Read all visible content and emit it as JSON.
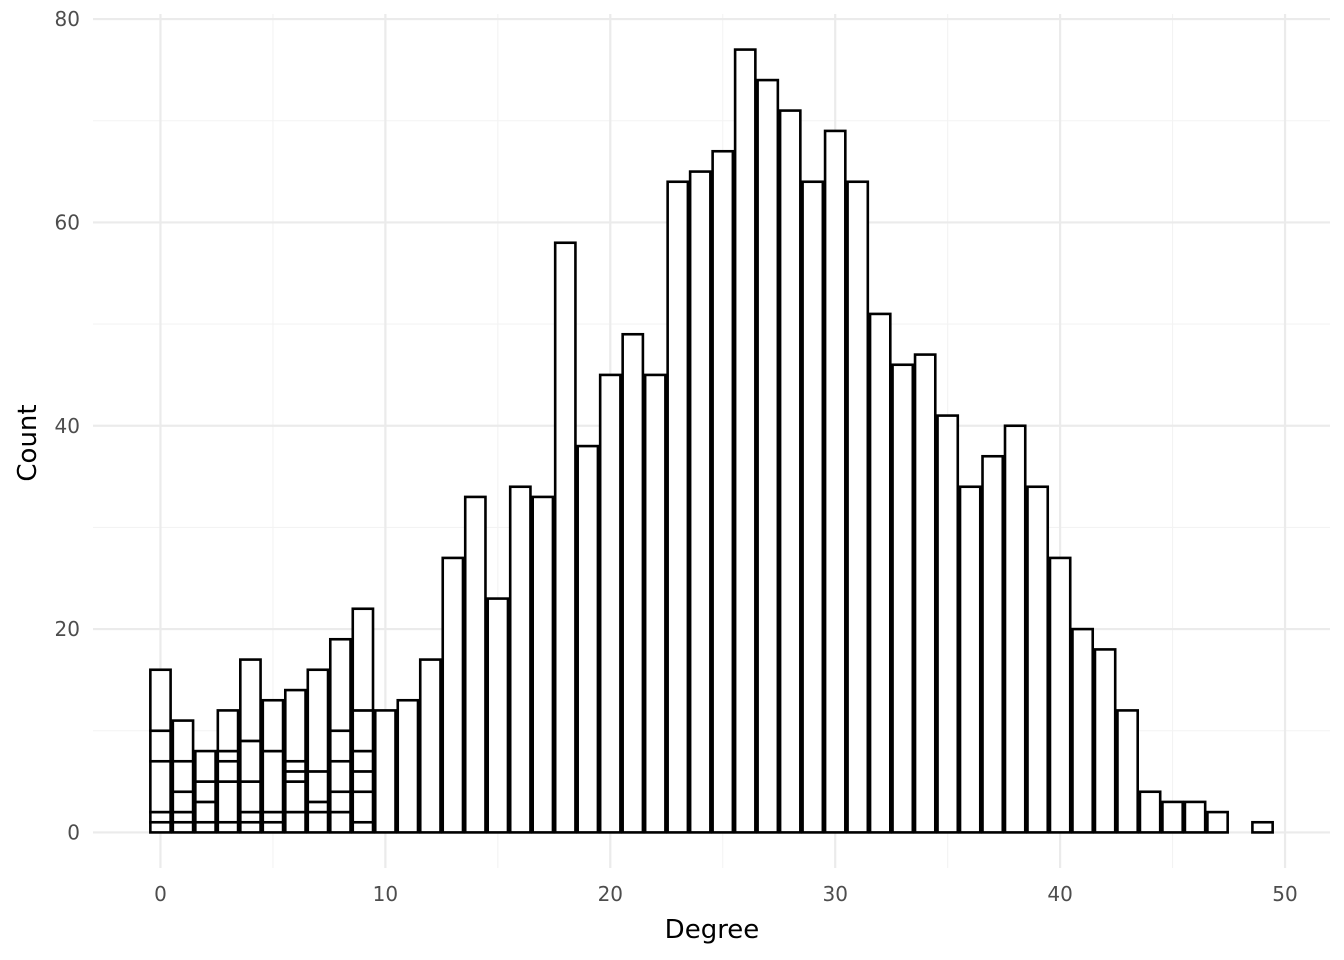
{
  "chart_data": {
    "type": "bar",
    "title": "",
    "xlabel": "Degree",
    "ylabel": "Count",
    "xlim": [
      -3,
      52
    ],
    "ylim": [
      -3.5,
      80.5
    ],
    "x_ticks": [
      0,
      10,
      20,
      30,
      40,
      50
    ],
    "y_ticks": [
      0,
      20,
      40,
      60,
      80
    ],
    "x_tick_labels": [
      "0",
      "10",
      "20",
      "30",
      "40",
      "50"
    ],
    "y_tick_labels": [
      "0",
      "20",
      "40",
      "60",
      "80"
    ],
    "grid": true,
    "bin_width": 1,
    "stacked": true,
    "bars": [
      {
        "x": 0,
        "values": [
          1,
          1,
          5,
          3,
          6
        ]
      },
      {
        "x": 1,
        "values": [
          1,
          1,
          2,
          3,
          4
        ]
      },
      {
        "x": 2,
        "values": [
          1,
          2,
          2,
          3
        ]
      },
      {
        "x": 3,
        "values": [
          1,
          4,
          2,
          1,
          4
        ]
      },
      {
        "x": 4,
        "values": [
          1,
          1,
          3,
          4,
          8
        ]
      },
      {
        "x": 5,
        "values": [
          1,
          1,
          6,
          5
        ]
      },
      {
        "x": 6,
        "values": [
          2,
          3,
          1,
          1,
          7
        ]
      },
      {
        "x": 7,
        "values": [
          2,
          1,
          3,
          10
        ]
      },
      {
        "x": 8,
        "values": [
          2,
          2,
          3,
          3,
          9
        ]
      },
      {
        "x": 9,
        "values": [
          1,
          3,
          2,
          2,
          4,
          10
        ]
      },
      {
        "x": 10,
        "values": [
          12
        ]
      },
      {
        "x": 11,
        "values": [
          13
        ]
      },
      {
        "x": 12,
        "values": [
          17
        ]
      },
      {
        "x": 13,
        "values": [
          27
        ]
      },
      {
        "x": 14,
        "values": [
          33
        ]
      },
      {
        "x": 15,
        "values": [
          23
        ]
      },
      {
        "x": 16,
        "values": [
          34
        ]
      },
      {
        "x": 17,
        "values": [
          33
        ]
      },
      {
        "x": 18,
        "values": [
          58
        ]
      },
      {
        "x": 19,
        "values": [
          38
        ]
      },
      {
        "x": 20,
        "values": [
          45
        ]
      },
      {
        "x": 21,
        "values": [
          49
        ]
      },
      {
        "x": 22,
        "values": [
          45
        ]
      },
      {
        "x": 23,
        "values": [
          64
        ]
      },
      {
        "x": 24,
        "values": [
          65
        ]
      },
      {
        "x": 25,
        "values": [
          67
        ]
      },
      {
        "x": 26,
        "values": [
          77
        ]
      },
      {
        "x": 27,
        "values": [
          74
        ]
      },
      {
        "x": 28,
        "values": [
          71
        ]
      },
      {
        "x": 29,
        "values": [
          64
        ]
      },
      {
        "x": 30,
        "values": [
          69
        ]
      },
      {
        "x": 31,
        "values": [
          64
        ]
      },
      {
        "x": 32,
        "values": [
          51
        ]
      },
      {
        "x": 33,
        "values": [
          46
        ]
      },
      {
        "x": 34,
        "values": [
          47
        ]
      },
      {
        "x": 35,
        "values": [
          41
        ]
      },
      {
        "x": 36,
        "values": [
          34
        ]
      },
      {
        "x": 37,
        "values": [
          37
        ]
      },
      {
        "x": 38,
        "values": [
          40
        ]
      },
      {
        "x": 39,
        "values": [
          34
        ]
      },
      {
        "x": 40,
        "values": [
          27
        ]
      },
      {
        "x": 41,
        "values": [
          20
        ]
      },
      {
        "x": 42,
        "values": [
          18
        ]
      },
      {
        "x": 43,
        "values": [
          12
        ]
      },
      {
        "x": 44,
        "values": [
          4
        ]
      },
      {
        "x": 45,
        "values": [
          3
        ]
      },
      {
        "x": 46,
        "values": [
          3
        ]
      },
      {
        "x": 47,
        "values": [
          2
        ]
      },
      {
        "x": 49,
        "values": [
          1
        ]
      }
    ]
  }
}
